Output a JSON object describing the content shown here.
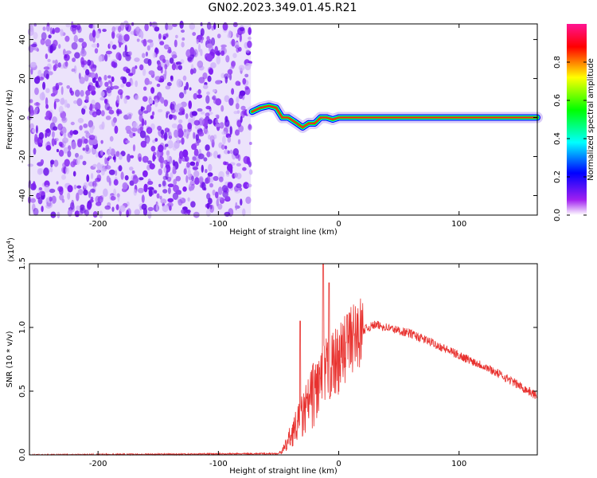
{
  "title": "GN02.2023.349.01.45.R21",
  "chart_data": [
    {
      "type": "heatmap",
      "xlabel": "Height of straight line (km)",
      "ylabel": "Frequency (Hz)",
      "xlim": [
        -257,
        165
      ],
      "ylim": [
        -50,
        48
      ],
      "xticks": [
        -200,
        -100,
        0,
        100
      ],
      "yticks": [
        -40,
        -20,
        0,
        20,
        40
      ],
      "colorbar": {
        "label": "Normalized spectral amplitude",
        "range": [
          0.0,
          1.0
        ],
        "ticks": [
          0.0,
          0.2,
          0.4,
          0.6,
          0.8
        ],
        "colormap": [
          "#ffffff",
          "#a020f0",
          "#0000ff",
          "#00ffff",
          "#00ff00",
          "#ffff00",
          "#ff0000",
          "#ff1493"
        ]
      },
      "noise_region_x": [
        -257,
        -73
      ],
      "signal_ridge": {
        "x": [
          -72,
          -65,
          -58,
          -52,
          -47,
          -42,
          -37,
          -30,
          -25,
          -20,
          -15,
          -10,
          -5,
          0,
          20,
          60,
          100,
          130,
          165
        ],
        "y": [
          3,
          5,
          6,
          5,
          0,
          0,
          -2,
          -5,
          -3,
          -3,
          0,
          0,
          -1,
          0,
          0,
          0,
          0,
          0,
          0
        ]
      }
    },
    {
      "type": "line",
      "xlabel": "Height of straight line (km)",
      "ylabel": "SNR (10 * v/v)",
      "y_multiplier": "(x10",
      "y_exponent": "4",
      "y_multiplier_close": ")",
      "xlim": [
        -257,
        165
      ],
      "ylim": [
        0,
        1.5
      ],
      "xticks": [
        -200,
        -100,
        0,
        100
      ],
      "yticks": [
        0.0,
        0.5,
        1.0,
        1.5
      ],
      "color": "#e8312e",
      "series": [
        {
          "x": [
            -257,
            -50,
            -45,
            -40,
            -30,
            -20,
            -10,
            0,
            10,
            20,
            30,
            40,
            60,
            80,
            100,
            120,
            140,
            165
          ],
          "y": [
            0.0,
            0.01,
            0.05,
            0.15,
            0.3,
            0.5,
            0.65,
            0.75,
            0.9,
            0.98,
            1.02,
            1.0,
            0.95,
            0.87,
            0.78,
            0.7,
            0.6,
            0.46
          ]
        }
      ],
      "peaks": {
        "x": [
          -32,
          -13,
          -8,
          7
        ],
        "y": [
          1.05,
          1.5,
          1.35,
          1.1
        ]
      }
    }
  ]
}
